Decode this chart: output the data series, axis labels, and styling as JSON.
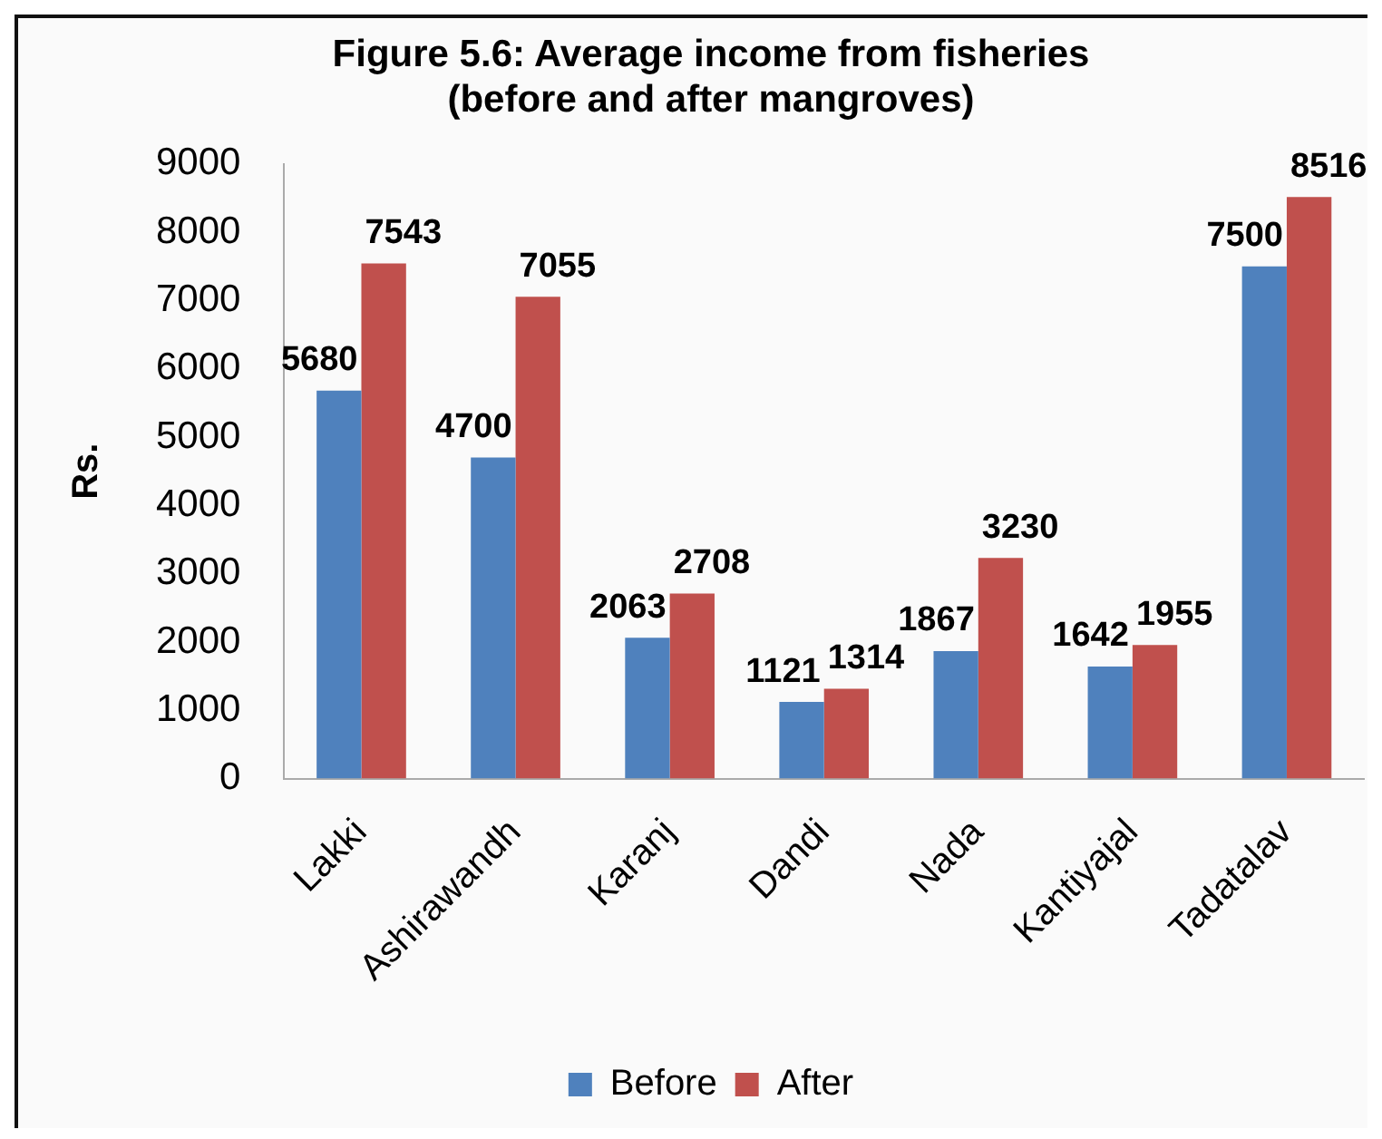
{
  "chart_data": {
    "type": "bar",
    "title": "Figure 5.6: Average income from fisheries\n(before and after mangroves)",
    "ylabel": "Rs.",
    "categories": [
      "Lakki",
      "Ashirawandh",
      "Karanj",
      "Dandi",
      "Nada",
      "Kantiyajal",
      "Tadatalav"
    ],
    "series": [
      {
        "name": "Before",
        "color": "#4f81bd",
        "values": [
          5680,
          4700,
          2063,
          1121,
          1867,
          1642,
          7500
        ]
      },
      {
        "name": "After",
        "color": "#c0504d",
        "values": [
          7543,
          7055,
          2708,
          1314,
          3230,
          1955,
          8516
        ]
      }
    ],
    "ylim": [
      0,
      9000
    ],
    "yticks": [
      0,
      1000,
      2000,
      3000,
      4000,
      5000,
      6000,
      7000,
      8000,
      9000
    ],
    "data_labels": true,
    "legend": "bottom",
    "grid": false
  }
}
